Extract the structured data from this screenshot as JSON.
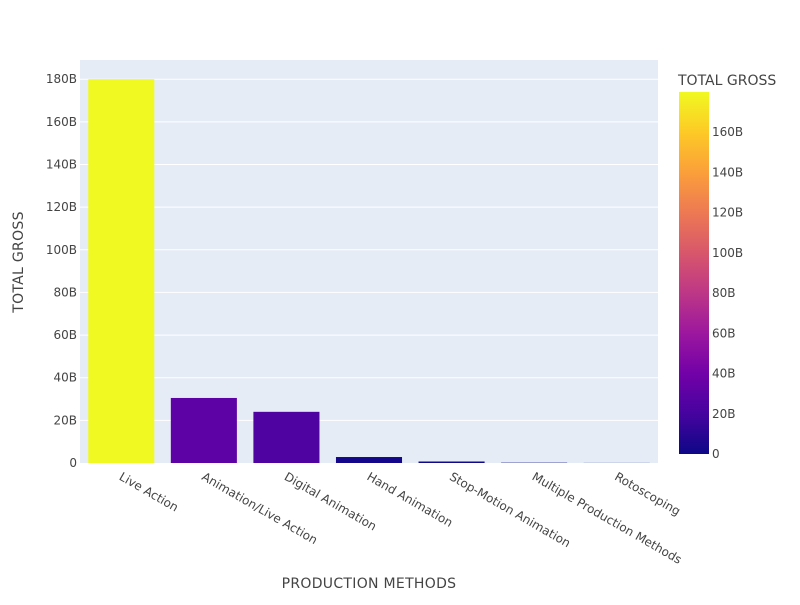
{
  "chart_data": {
    "type": "bar",
    "title": "",
    "xlabel": "PRODUCTION METHODS",
    "ylabel": "TOTAL GROSS",
    "categories": [
      "Live Action",
      "Animation/Live Action",
      "Digital Animation",
      "Hand Animation",
      "Stop-Motion Animation",
      "Multiple Production Methods",
      "Rotoscoping"
    ],
    "values": [
      180000000000,
      30500000000,
      24000000000,
      2800000000,
      700000000,
      150000000,
      50000000
    ],
    "ylim": [
      0,
      189000000000
    ],
    "y_ticks": [
      {
        "value": 0,
        "label": "0"
      },
      {
        "value": 20000000000,
        "label": "20B"
      },
      {
        "value": 40000000000,
        "label": "40B"
      },
      {
        "value": 60000000000,
        "label": "60B"
      },
      {
        "value": 80000000000,
        "label": "80B"
      },
      {
        "value": 100000000000,
        "label": "100B"
      },
      {
        "value": 120000000000,
        "label": "120B"
      },
      {
        "value": 140000000000,
        "label": "140B"
      },
      {
        "value": 160000000000,
        "label": "160B"
      },
      {
        "value": 180000000000,
        "label": "180B"
      }
    ],
    "grid": true,
    "plot_background": "#e5ecf6",
    "colorbar": {
      "title": "TOTAL GROSS",
      "range": [
        0,
        180000000000
      ],
      "colorscale": [
        "#0d0887",
        "#46039f",
        "#7201a8",
        "#9c179e",
        "#bd3786",
        "#d8576b",
        "#ed7953",
        "#fb9f3a",
        "#fdca26",
        "#f0f921"
      ],
      "ticks": [
        {
          "value": 0,
          "label": "0"
        },
        {
          "value": 20000000000,
          "label": "20B"
        },
        {
          "value": 40000000000,
          "label": "40B"
        },
        {
          "value": 60000000000,
          "label": "60B"
        },
        {
          "value": 80000000000,
          "label": "80B"
        },
        {
          "value": 100000000000,
          "label": "100B"
        },
        {
          "value": 120000000000,
          "label": "120B"
        },
        {
          "value": 140000000000,
          "label": "140B"
        },
        {
          "value": 160000000000,
          "label": "160B"
        }
      ]
    }
  }
}
